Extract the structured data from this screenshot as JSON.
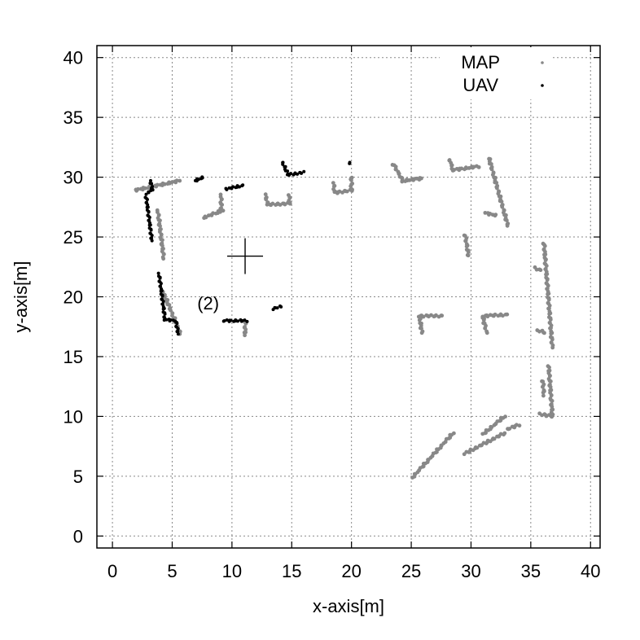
{
  "chart_data": {
    "type": "scatter",
    "xlabel": "x-axis[m]",
    "ylabel": "y-axis[m]",
    "xlim": [
      -1.3,
      40.8
    ],
    "ylim": [
      -1.0,
      41.0
    ],
    "xticks": [
      0,
      5,
      10,
      15,
      20,
      25,
      30,
      35,
      40
    ],
    "yticks": [
      0,
      5,
      10,
      15,
      20,
      25,
      30,
      35,
      40
    ],
    "xtick_labels": [
      "0",
      "5",
      "10",
      "15",
      "20",
      "25",
      "30",
      "35",
      "40"
    ],
    "ytick_labels": [
      "0",
      "5",
      "10",
      "15",
      "20",
      "25",
      "30",
      "35",
      "40"
    ],
    "grid": true,
    "legend_position": "top-right",
    "series": [
      {
        "name": "MAP",
        "color": "#888888",
        "segments": [
          [
            [
              1.9,
              28.9
            ],
            [
              5.6,
              29.7
            ]
          ],
          [
            [
              3.8,
              27.2
            ],
            [
              4.3,
              23.2
            ]
          ],
          [
            [
              4.2,
              20.5
            ],
            [
              5.7,
              16.9
            ]
          ],
          [
            [
              7.6,
              26.6
            ],
            [
              9.2,
              27.2
            ]
          ],
          [
            [
              9.1,
              27.2
            ],
            [
              9.1,
              28.5
            ]
          ],
          [
            [
              11.1,
              18.0
            ],
            [
              11.1,
              16.8
            ]
          ],
          [
            [
              12.8,
              28.5
            ],
            [
              13.0,
              27.7
            ]
          ],
          [
            [
              13.0,
              27.7
            ],
            [
              14.8,
              27.8
            ]
          ],
          [
            [
              14.8,
              27.8
            ],
            [
              14.8,
              28.5
            ]
          ],
          [
            [
              18.5,
              29.5
            ],
            [
              18.6,
              28.7
            ]
          ],
          [
            [
              18.6,
              28.7
            ],
            [
              20.0,
              28.9
            ]
          ],
          [
            [
              20.0,
              28.9
            ],
            [
              20.0,
              30.0
            ]
          ],
          [
            [
              23.5,
              31.1
            ],
            [
              24.3,
              29.7
            ]
          ],
          [
            [
              24.3,
              29.7
            ],
            [
              25.9,
              29.9
            ]
          ],
          [
            [
              28.2,
              31.5
            ],
            [
              28.5,
              30.6
            ]
          ],
          [
            [
              28.5,
              30.6
            ],
            [
              30.6,
              30.9
            ]
          ],
          [
            [
              31.5,
              31.6
            ],
            [
              33.1,
              25.9
            ]
          ],
          [
            [
              31.2,
              27.0
            ],
            [
              32.1,
              26.8
            ]
          ],
          [
            [
              29.5,
              25.2
            ],
            [
              29.8,
              23.4
            ]
          ],
          [
            [
              25.6,
              18.4
            ],
            [
              27.6,
              18.4
            ]
          ],
          [
            [
              25.7,
              18.3
            ],
            [
              25.9,
              17.0
            ]
          ],
          [
            [
              31.0,
              18.4
            ],
            [
              33.0,
              18.5
            ]
          ],
          [
            [
              31.0,
              18.3
            ],
            [
              31.3,
              17.0
            ]
          ],
          [
            [
              35.4,
              22.4
            ],
            [
              35.8,
              22.2
            ]
          ],
          [
            [
              36.1,
              24.5
            ],
            [
              36.8,
              15.8
            ]
          ],
          [
            [
              35.6,
              17.2
            ],
            [
              36.2,
              17.0
            ]
          ],
          [
            [
              36.5,
              14.2
            ],
            [
              36.8,
              10.2
            ]
          ],
          [
            [
              35.8,
              10.2
            ],
            [
              36.8,
              10.0
            ]
          ],
          [
            [
              36.0,
              13.0
            ],
            [
              36.1,
              11.8
            ]
          ],
          [
            [
              25.1,
              4.9
            ],
            [
              28.5,
              8.6
            ]
          ],
          [
            [
              29.5,
              6.9
            ],
            [
              32.8,
              8.6
            ]
          ],
          [
            [
              31.0,
              8.5
            ],
            [
              32.8,
              10.0
            ]
          ],
          [
            [
              33.0,
              8.9
            ],
            [
              34.0,
              9.3
            ]
          ]
        ]
      },
      {
        "name": "UAV",
        "color": "#000000",
        "segments": [
          [
            [
              2.8,
              28.5
            ],
            [
              3.3,
              24.7
            ]
          ],
          [
            [
              3.0,
              28.7
            ],
            [
              3.4,
              29.0
            ]
          ],
          [
            [
              3.2,
              29.7
            ],
            [
              3.3,
              29.1
            ]
          ],
          [
            [
              3.9,
              21.9
            ],
            [
              4.4,
              18.1
            ]
          ],
          [
            [
              4.4,
              18.1
            ],
            [
              5.2,
              18.0
            ]
          ],
          [
            [
              5.3,
              18.0
            ],
            [
              5.5,
              16.9
            ]
          ],
          [
            [
              6.9,
              29.7
            ],
            [
              7.6,
              30.0
            ]
          ],
          [
            [
              9.5,
              29.0
            ],
            [
              10.9,
              29.3
            ]
          ],
          [
            [
              9.3,
              18.0
            ],
            [
              11.2,
              18.0
            ]
          ],
          [
            [
              13.4,
              19.0
            ],
            [
              14.1,
              19.2
            ]
          ],
          [
            [
              14.2,
              31.3
            ],
            [
              14.7,
              30.2
            ]
          ],
          [
            [
              14.7,
              30.2
            ],
            [
              16.0,
              30.4
            ]
          ],
          [
            [
              19.8,
              31.3
            ],
            [
              19.8,
              31.1
            ]
          ]
        ]
      }
    ],
    "annotations": [
      {
        "text": "(2)",
        "x": 9.0,
        "y": 19.5
      }
    ],
    "markers": [
      {
        "type": "crosshair",
        "x": 11.1,
        "y": 23.4
      }
    ]
  }
}
